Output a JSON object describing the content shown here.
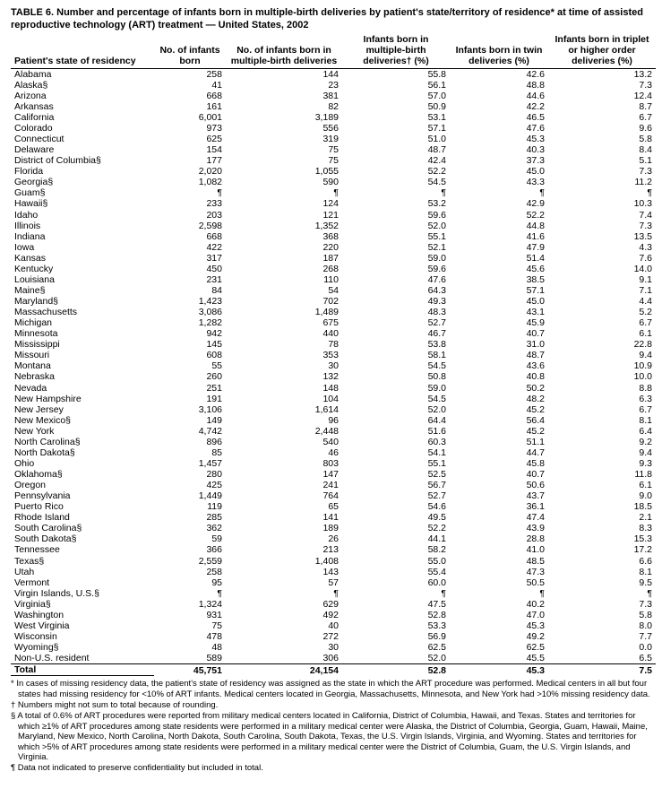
{
  "title": "TABLE 6. Number and percentage of infants born in multiple-birth deliveries by patient's state/territory of residence* at time of assisted reproductive technology (ART) treatment — United States, 2002",
  "columns": [
    "Patient's state of residency",
    "No. of infants born",
    "No. of infants born in multiple-birth deliveries",
    "Infants born in multiple-birth deliveries† (%)",
    "Infants born in twin deliveries (%)",
    "Infants born in triplet or higher order deliveries (%)"
  ],
  "rows": [
    [
      "Alabama",
      "258",
      "144",
      "55.8",
      "42.6",
      "13.2"
    ],
    [
      "Alaska§",
      "41",
      "23",
      "56.1",
      "48.8",
      "7.3"
    ],
    [
      "Arizona",
      "668",
      "381",
      "57.0",
      "44.6",
      "12.4"
    ],
    [
      "Arkansas",
      "161",
      "82",
      "50.9",
      "42.2",
      "8.7"
    ],
    [
      "California",
      "6,001",
      "3,189",
      "53.1",
      "46.5",
      "6.7"
    ],
    [
      "Colorado",
      "973",
      "556",
      "57.1",
      "47.6",
      "9.6"
    ],
    [
      "Connecticut",
      "625",
      "319",
      "51.0",
      "45.3",
      "5.8"
    ],
    [
      "Delaware",
      "154",
      "75",
      "48.7",
      "40.3",
      "8.4"
    ],
    [
      "District of Columbia§",
      "177",
      "75",
      "42.4",
      "37.3",
      "5.1"
    ],
    [
      "Florida",
      "2,020",
      "1,055",
      "52.2",
      "45.0",
      "7.3"
    ],
    [
      "Georgia§",
      "1,082",
      "590",
      "54.5",
      "43.3",
      "11.2"
    ],
    [
      "Guam§",
      "¶",
      "¶",
      "¶",
      "¶",
      "¶"
    ],
    [
      "Hawaii§",
      "233",
      "124",
      "53.2",
      "42.9",
      "10.3"
    ],
    [
      "Idaho",
      "203",
      "121",
      "59.6",
      "52.2",
      "7.4"
    ],
    [
      "Illinois",
      "2,598",
      "1,352",
      "52.0",
      "44.8",
      "7.3"
    ],
    [
      "Indiana",
      "668",
      "368",
      "55.1",
      "41.6",
      "13.5"
    ],
    [
      "Iowa",
      "422",
      "220",
      "52.1",
      "47.9",
      "4.3"
    ],
    [
      "Kansas",
      "317",
      "187",
      "59.0",
      "51.4",
      "7.6"
    ],
    [
      "Kentucky",
      "450",
      "268",
      "59.6",
      "45.6",
      "14.0"
    ],
    [
      "Louisiana",
      "231",
      "110",
      "47.6",
      "38.5",
      "9.1"
    ],
    [
      "Maine§",
      "84",
      "54",
      "64.3",
      "57.1",
      "7.1"
    ],
    [
      "Maryland§",
      "1,423",
      "702",
      "49.3",
      "45.0",
      "4.4"
    ],
    [
      "Massachusetts",
      "3,086",
      "1,489",
      "48.3",
      "43.1",
      "5.2"
    ],
    [
      "Michigan",
      "1,282",
      "675",
      "52.7",
      "45.9",
      "6.7"
    ],
    [
      "Minnesota",
      "942",
      "440",
      "46.7",
      "40.7",
      "6.1"
    ],
    [
      "Mississippi",
      "145",
      "78",
      "53.8",
      "31.0",
      "22.8"
    ],
    [
      "Missouri",
      "608",
      "353",
      "58.1",
      "48.7",
      "9.4"
    ],
    [
      "Montana",
      "55",
      "30",
      "54.5",
      "43.6",
      "10.9"
    ],
    [
      "Nebraska",
      "260",
      "132",
      "50.8",
      "40.8",
      "10.0"
    ],
    [
      "Nevada",
      "251",
      "148",
      "59.0",
      "50.2",
      "8.8"
    ],
    [
      "New Hampshire",
      "191",
      "104",
      "54.5",
      "48.2",
      "6.3"
    ],
    [
      "New Jersey",
      "3,106",
      "1,614",
      "52.0",
      "45.2",
      "6.7"
    ],
    [
      "New Mexico§",
      "149",
      "96",
      "64.4",
      "56.4",
      "8.1"
    ],
    [
      "New York",
      "4,742",
      "2,448",
      "51.6",
      "45.2",
      "6.4"
    ],
    [
      "North Carolina§",
      "896",
      "540",
      "60.3",
      "51.1",
      "9.2"
    ],
    [
      "North Dakota§",
      "85",
      "46",
      "54.1",
      "44.7",
      "9.4"
    ],
    [
      "Ohio",
      "1,457",
      "803",
      "55.1",
      "45.8",
      "9.3"
    ],
    [
      "Oklahoma§",
      "280",
      "147",
      "52.5",
      "40.7",
      "11.8"
    ],
    [
      "Oregon",
      "425",
      "241",
      "56.7",
      "50.6",
      "6.1"
    ],
    [
      "Pennsylvania",
      "1,449",
      "764",
      "52.7",
      "43.7",
      "9.0"
    ],
    [
      "Puerto Rico",
      "119",
      "65",
      "54.6",
      "36.1",
      "18.5"
    ],
    [
      "Rhode Island",
      "285",
      "141",
      "49.5",
      "47.4",
      "2.1"
    ],
    [
      "South Carolina§",
      "362",
      "189",
      "52.2",
      "43.9",
      "8.3"
    ],
    [
      "South Dakota§",
      "59",
      "26",
      "44.1",
      "28.8",
      "15.3"
    ],
    [
      "Tennessee",
      "366",
      "213",
      "58.2",
      "41.0",
      "17.2"
    ],
    [
      "Texas§",
      "2,559",
      "1,408",
      "55.0",
      "48.5",
      "6.6"
    ],
    [
      "Utah",
      "258",
      "143",
      "55.4",
      "47.3",
      "8.1"
    ],
    [
      "Vermont",
      "95",
      "57",
      "60.0",
      "50.5",
      "9.5"
    ],
    [
      "Virgin Islands, U.S.§",
      "¶",
      "¶",
      "¶",
      "¶",
      "¶"
    ],
    [
      "Virginia§",
      "1,324",
      "629",
      "47.5",
      "40.2",
      "7.3"
    ],
    [
      "Washington",
      "931",
      "492",
      "52.8",
      "47.0",
      "5.8"
    ],
    [
      "West Virginia",
      "75",
      "40",
      "53.3",
      "45.3",
      "8.0"
    ],
    [
      "Wisconsin",
      "478",
      "272",
      "56.9",
      "49.2",
      "7.7"
    ],
    [
      "Wyoming§",
      "48",
      "30",
      "62.5",
      "62.5",
      "0.0"
    ],
    [
      "Non-U.S. resident",
      "589",
      "306",
      "52.0",
      "45.5",
      "6.5"
    ]
  ],
  "total": [
    "Total",
    "45,751",
    "24,154",
    "52.8",
    "45.3",
    "7.5"
  ],
  "footnotes": [
    "* In cases of missing residency data, the patient's state of residency was assigned as the state in which the ART procedure was performed. Medical centers in all but four states had missing residency for <10% of ART infants. Medical centers located in Georgia, Massachusetts, Minnesota, and New York had >10% missing residency data.",
    "† Numbers might not sum to total because of rounding.",
    "§ A total of 0.6% of ART procedures were reported from military medical centers located in California, District of Columbia, Hawaii, and Texas. States and territories for which ≥1% of ART procedures among state residents were performed in a military medical center were Alaska, the District of Columbia, Georgia, Guam, Hawaii, Maine, Maryland, New Mexico, North Carolina, North Dakota, South Carolina, South Dakota, Texas, the U.S. Virgin Islands, Virginia, and Wyoming. States and territories for which >5% of ART procedures among state residents were performed in a military medical center were the District of Columbia, Guam, the U.S. Virgin Islands, and Virginia.",
    "¶ Data not indicated to preserve confidentiality but included in total."
  ]
}
